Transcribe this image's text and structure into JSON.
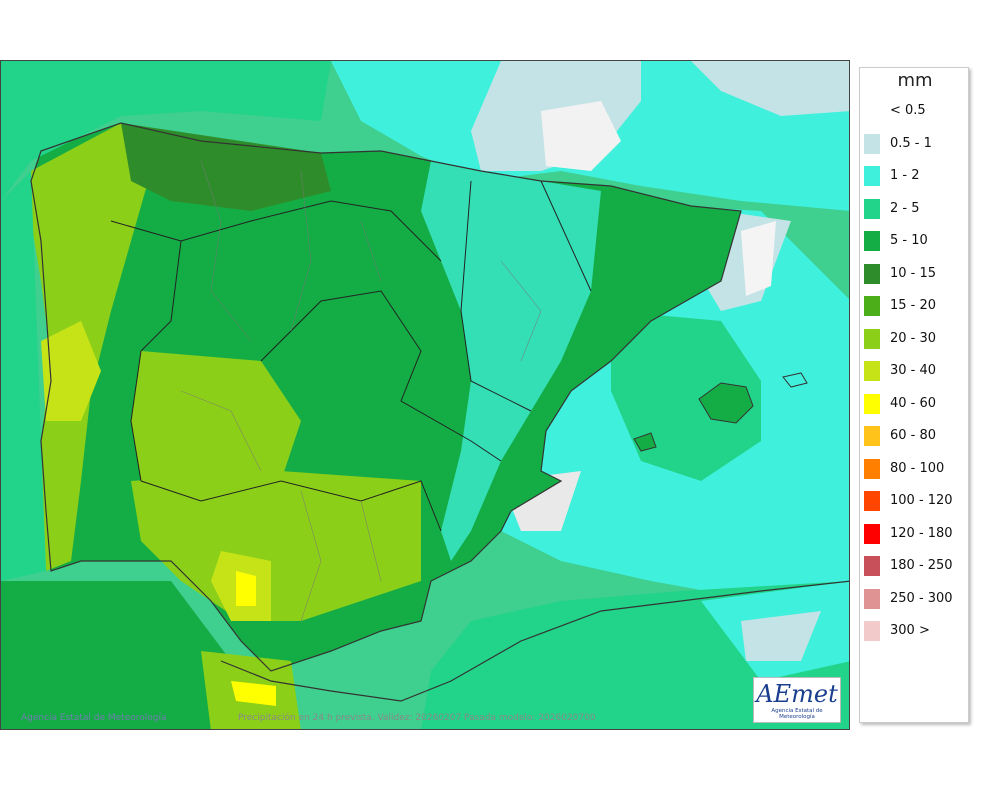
{
  "map": {
    "copyright": "Agencia Estatal de Meteorología",
    "caption": "Precipitación en 24 h prevista. Validez: 20260207 Pasada modelo: 2026020700",
    "logo_text": "AEmet",
    "logo_subtitle": "Agencia Estatal de Meteorología",
    "land_color": "#58bf49",
    "sea_color": "#3fcf8e"
  },
  "legend": {
    "unit": "mm",
    "items": [
      {
        "label": "< 0.5",
        "color": "#ffffff"
      },
      {
        "label": "0.5 - 1",
        "color": "#c4e3e6"
      },
      {
        "label": "1 - 2",
        "color": "#3ff0dc"
      },
      {
        "label": "2 - 5",
        "color": "#22d38a"
      },
      {
        "label": "5 - 10",
        "color": "#14ad45"
      },
      {
        "label": "10 - 15",
        "color": "#2e8d2a"
      },
      {
        "label": "15 - 20",
        "color": "#4cae18"
      },
      {
        "label": "20 - 30",
        "color": "#8ccf18"
      },
      {
        "label": "30 - 40",
        "color": "#c6e318"
      },
      {
        "label": "40 - 60",
        "color": "#ffff00"
      },
      {
        "label": "60 - 80",
        "color": "#ffc31a"
      },
      {
        "label": "80 - 100",
        "color": "#ff8000"
      },
      {
        "label": "100 - 120",
        "color": "#ff4500"
      },
      {
        "label": "120 - 180",
        "color": "#ff0000"
      },
      {
        "label": "180 - 250",
        "color": "#c8505a"
      },
      {
        "label": "250 - 300",
        "color": "#e09393"
      },
      {
        "label": "300 >",
        "color": "#f3caca"
      }
    ]
  }
}
